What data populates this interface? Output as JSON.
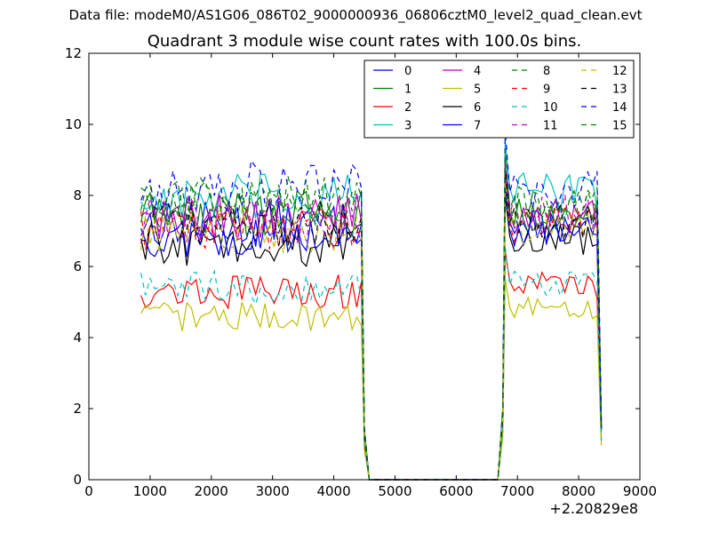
{
  "header": {
    "data_file": "Data file: modeM0/AS1G06_086T02_9000000936_06806cztM0_level2_quad_clean.evt"
  },
  "chart_data": {
    "type": "line",
    "title": "Quadrant 3 module wise count rates with 100.0s bins.",
    "xlabel": "",
    "ylabel": "",
    "x_offset_label": "+2.20829e8",
    "xlim": [
      0,
      9000
    ],
    "ylim": [
      0,
      12
    ],
    "xticks": [
      0,
      1000,
      2000,
      3000,
      4000,
      5000,
      6000,
      7000,
      8000,
      9000
    ],
    "yticks": [
      0,
      2,
      4,
      6,
      8,
      10,
      12
    ],
    "grid": false,
    "legend": {
      "position": "top-right",
      "columns": 4
    },
    "segments": [
      {
        "x_start": 850,
        "x_end": 4450,
        "step": 75
      },
      {
        "x_start": 6720,
        "x_end": 8400,
        "step": 75
      }
    ],
    "series": [
      {
        "name": "0",
        "color": "#0000ff",
        "dashed": false,
        "level1": 7.2,
        "level2": 7.1
      },
      {
        "name": "1",
        "color": "#008000",
        "dashed": false,
        "level1": 7.5,
        "level2": 7.4
      },
      {
        "name": "2",
        "color": "#ff0000",
        "dashed": false,
        "level1": 5.3,
        "level2": 5.5
      },
      {
        "name": "3",
        "color": "#00bfbf",
        "dashed": false,
        "level1": 7.9,
        "level2": 8.1
      },
      {
        "name": "4",
        "color": "#bf00bf",
        "dashed": false,
        "level1": 7.4,
        "level2": 7.4
      },
      {
        "name": "5",
        "color": "#bfbf00",
        "dashed": false,
        "level1": 4.6,
        "level2": 4.8
      },
      {
        "name": "6",
        "color": "#000000",
        "dashed": false,
        "level1": 6.6,
        "level2": 6.8
      },
      {
        "name": "7",
        "color": "#0000ff",
        "dashed": false,
        "level1": 6.8,
        "level2": 7.0
      },
      {
        "name": "8",
        "color": "#008000",
        "dashed": true,
        "level1": 7.8,
        "level2": 7.7
      },
      {
        "name": "9",
        "color": "#ff0000",
        "dashed": true,
        "level1": 7.1,
        "level2": 7.2
      },
      {
        "name": "10",
        "color": "#00bfbf",
        "dashed": true,
        "level1": 5.4,
        "level2": 5.5
      },
      {
        "name": "11",
        "color": "#bf00bf",
        "dashed": true,
        "level1": 7.3,
        "level2": 7.5
      },
      {
        "name": "12",
        "color": "#bfbf00",
        "dashed": true,
        "level1": 7.0,
        "level2": 7.1
      },
      {
        "name": "13",
        "color": "#000000",
        "dashed": true,
        "level1": 7.2,
        "level2": 7.3
      },
      {
        "name": "14",
        "color": "#0000ff",
        "dashed": true,
        "level1": 8.3,
        "level2": 8.2
      },
      {
        "name": "15",
        "color": "#008000",
        "dashed": true,
        "level1": 7.9,
        "level2": 7.7
      }
    ]
  }
}
